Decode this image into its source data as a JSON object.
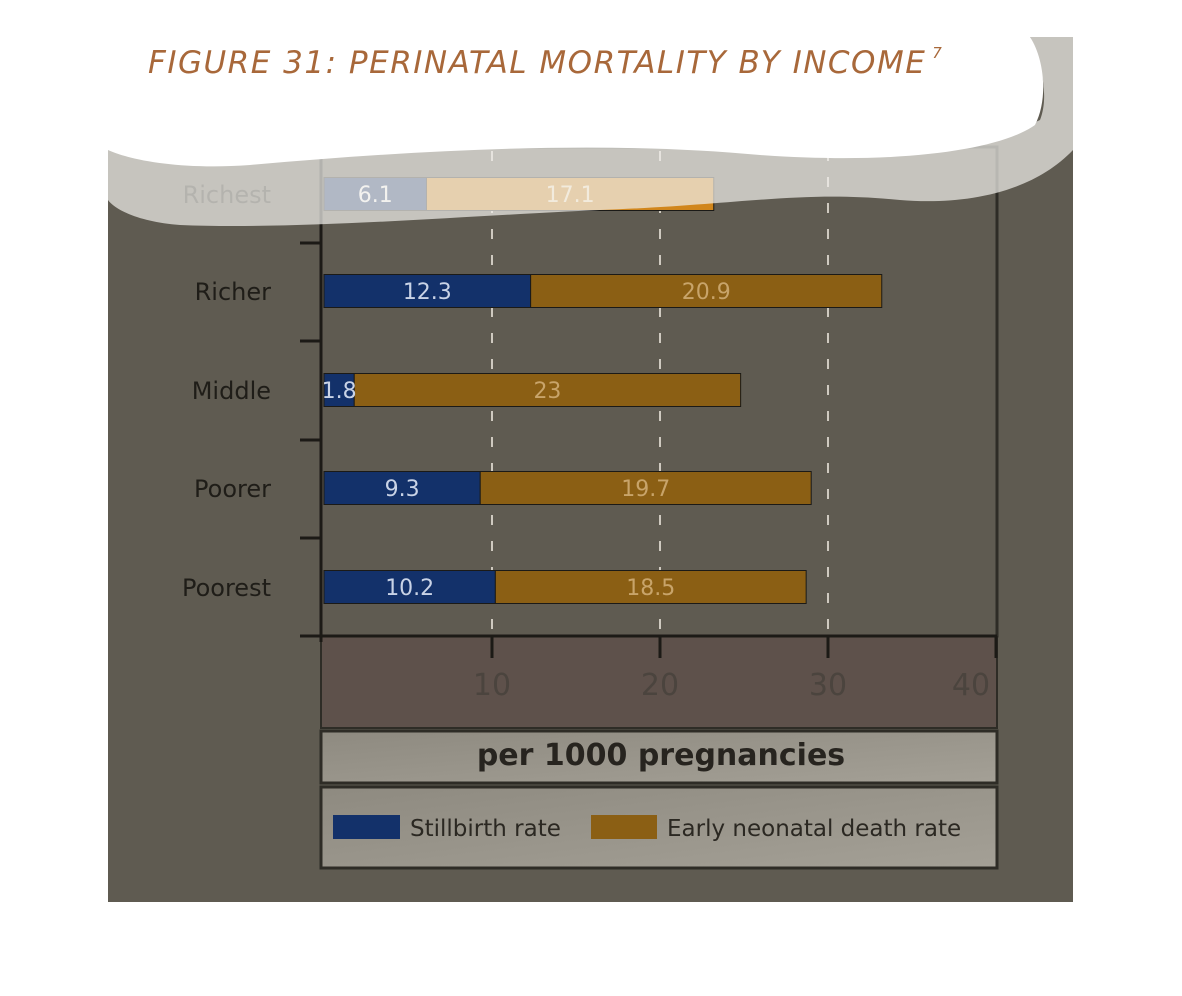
{
  "figure": {
    "title": "FIGURE 31: PERINATAL MORTALITY BY INCOME",
    "footnote": "7"
  },
  "colors": {
    "stillbirth": "#13316a",
    "neonatal": "#8b5f14",
    "neonatal_highlight": "#d1861c",
    "backdrop": "#5f5b51",
    "title": "#a8683a"
  },
  "chart_data": {
    "type": "bar",
    "orientation": "horizontal",
    "stacked": true,
    "categories": [
      "Richest",
      "Richer",
      "Middle",
      "Poorer",
      "Poorest"
    ],
    "series": [
      {
        "name": "Stillbirth rate",
        "values": [
          6.1,
          12.3,
          1.8,
          9.3,
          10.2
        ]
      },
      {
        "name": "Early neonatal death rate",
        "values": [
          17.1,
          20.9,
          23,
          19.7,
          18.5
        ]
      }
    ],
    "data_labels": [
      [
        "6.1",
        "12.3",
        "1.8",
        "9.3",
        "10.2"
      ],
      [
        "17.1",
        "20.9",
        "23",
        "19.7",
        "18.5"
      ]
    ],
    "xlabel": "per 1000 pregnancies",
    "x_ticks": [
      10,
      20,
      30,
      40
    ],
    "xlim": [
      0,
      40
    ],
    "grid": true,
    "legend_position": "bottom"
  }
}
